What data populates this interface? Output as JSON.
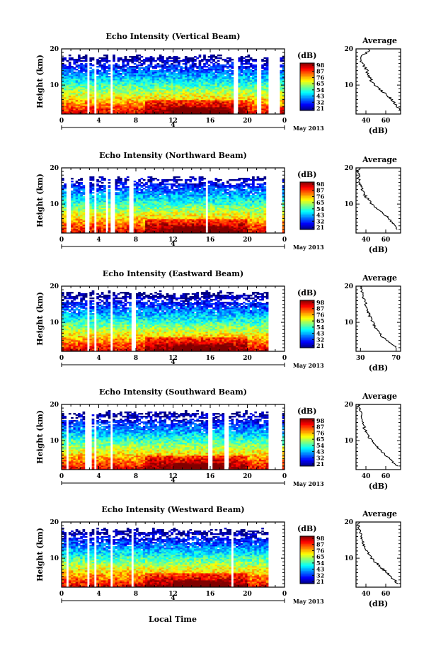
{
  "chart_data": [
    {
      "type": "heatmap",
      "title": "Echo Intensity (Vertical Beam)",
      "ylabel": "Height (km)",
      "xticks": [
        "0",
        "4",
        "8",
        "12",
        "16",
        "20",
        "0"
      ],
      "date_marker": "4",
      "date_label": "May 2013",
      "ylim": [
        2,
        20
      ],
      "yticks": [
        "20",
        "10"
      ],
      "colorbar": {
        "unit": "(dB)",
        "ticks": [
          "98",
          "87",
          "76",
          "65",
          "54",
          "43",
          "32",
          "21"
        ]
      },
      "profile": {
        "title": "Average",
        "xlabel": "(dB)",
        "xticks": [
          "40",
          "60"
        ],
        "xlim": [
          30,
          75
        ],
        "yticks": [
          "20",
          "10"
        ],
        "height_km": [
          3,
          4,
          5,
          6,
          7,
          8,
          9,
          10,
          11,
          12,
          13,
          14,
          15,
          16,
          17,
          18,
          19,
          20
        ],
        "values_db": [
          74,
          72,
          69,
          66,
          62,
          58,
          53,
          49,
          46,
          44,
          42,
          41,
          39,
          36,
          35,
          36,
          41,
          44
        ]
      }
    },
    {
      "type": "heatmap",
      "title": "Echo Intensity (Northward Beam)",
      "ylabel": "Height (km)",
      "xticks": [
        "0",
        "4",
        "8",
        "12",
        "16",
        "20",
        "0"
      ],
      "date_marker": "4",
      "date_label": "May 2013",
      "ylim": [
        2,
        20
      ],
      "yticks": [
        "20",
        "10"
      ],
      "colorbar": {
        "unit": "(dB)",
        "ticks": [
          "98",
          "87",
          "76",
          "65",
          "54",
          "43",
          "32",
          "21"
        ]
      },
      "profile": {
        "title": "Average",
        "xlabel": "(dB)",
        "xticks": [
          "40",
          "60"
        ],
        "xlim": [
          30,
          75
        ],
        "yticks": [
          "20",
          "10"
        ],
        "height_km": [
          3,
          4,
          5,
          6,
          7,
          8,
          9,
          10,
          11,
          12,
          13,
          14,
          15,
          16,
          17,
          18,
          19,
          20
        ],
        "values_db": [
          72,
          70,
          67,
          63,
          59,
          55,
          50,
          46,
          43,
          40,
          38,
          36,
          35,
          34,
          33,
          33,
          32,
          33
        ]
      }
    },
    {
      "type": "heatmap",
      "title": "Echo Intensity (Eastward Beam)",
      "ylabel": "Height (km)",
      "xticks": [
        "0",
        "4",
        "8",
        "12",
        "16",
        "20",
        "0"
      ],
      "date_marker": "4",
      "date_label": "May 2013",
      "ylim": [
        2,
        20
      ],
      "yticks": [
        "20",
        "10"
      ],
      "colorbar": {
        "unit": "(dB)",
        "ticks": [
          "98",
          "87",
          "76",
          "65",
          "54",
          "43",
          "32",
          "21"
        ]
      },
      "profile": {
        "title": "Average",
        "xlabel": "(dB)",
        "xticks": [
          "30",
          "70"
        ],
        "xlim": [
          25,
          75
        ],
        "yticks": [
          "20",
          "10"
        ],
        "height_km": [
          3,
          4,
          5,
          6,
          7,
          8,
          9,
          10,
          11,
          12,
          13,
          14,
          15,
          16,
          17,
          18,
          19,
          20
        ],
        "values_db": [
          70,
          66,
          60,
          55,
          51,
          48,
          46,
          44,
          42,
          40,
          38,
          37,
          36,
          35,
          33,
          32,
          31,
          31
        ]
      }
    },
    {
      "type": "heatmap",
      "title": "Echo Intensity (Southward Beam)",
      "ylabel": "Height (km)",
      "xticks": [
        "0",
        "4",
        "8",
        "12",
        "16",
        "20",
        "0"
      ],
      "date_marker": "4",
      "date_label": "May 2013",
      "ylim": [
        2,
        20
      ],
      "yticks": [
        "20",
        "10"
      ],
      "colorbar": {
        "unit": "(dB)",
        "ticks": [
          "98",
          "87",
          "76",
          "65",
          "54",
          "43",
          "32",
          "21"
        ]
      },
      "profile": {
        "title": "Average",
        "xlabel": "(dB)",
        "xticks": [
          "40",
          "60"
        ],
        "xlim": [
          30,
          75
        ],
        "yticks": [
          "20",
          "10"
        ],
        "height_km": [
          3,
          4,
          5,
          6,
          7,
          8,
          9,
          10,
          11,
          12,
          13,
          14,
          15,
          16,
          17,
          18,
          19,
          20
        ],
        "values_db": [
          71,
          68,
          64,
          60,
          56,
          52,
          49,
          46,
          43,
          41,
          39,
          38,
          37,
          36,
          35,
          34,
          33,
          32
        ]
      }
    },
    {
      "type": "heatmap",
      "title": "Echo Intensity (Westward Beam)",
      "ylabel": "Height (km)",
      "xticks": [
        "0",
        "4",
        "8",
        "12",
        "16",
        "20",
        "0"
      ],
      "date_marker": "4",
      "date_label": "May 2013",
      "ylim": [
        2,
        20
      ],
      "yticks": [
        "20",
        "10"
      ],
      "colorbar": {
        "unit": "(dB)",
        "ticks": [
          "98",
          "87",
          "76",
          "65",
          "54",
          "43",
          "32",
          "21"
        ]
      },
      "profile": {
        "title": "Average",
        "xlabel": "(dB)",
        "xticks": [
          "40",
          "60"
        ],
        "xlim": [
          30,
          75
        ],
        "yticks": [
          "20",
          "10"
        ],
        "height_km": [
          3,
          4,
          5,
          6,
          7,
          8,
          9,
          10,
          11,
          12,
          13,
          14,
          15,
          16,
          17,
          18,
          19,
          20
        ],
        "values_db": [
          72,
          69,
          65,
          61,
          57,
          53,
          49,
          46,
          43,
          41,
          39,
          37,
          36,
          35,
          34,
          33,
          32,
          33
        ]
      }
    }
  ],
  "xlabel": "Local Time"
}
